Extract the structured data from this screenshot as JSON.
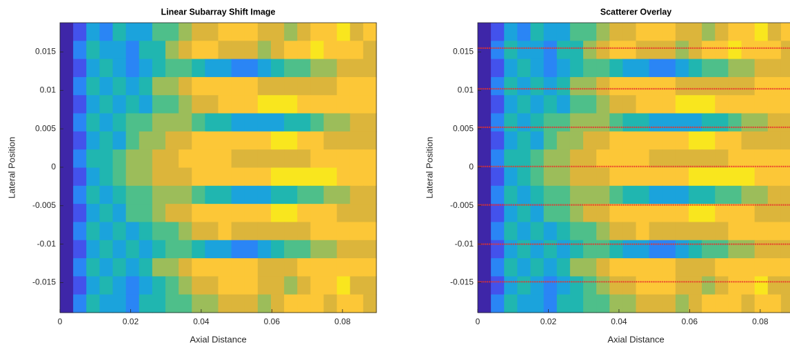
{
  "chart_data": [
    {
      "type": "heatmap",
      "title": "Linear Subarray Shift Image",
      "x_label": "Axial Distance",
      "y_label": "Lateral Position",
      "xlim": [
        0,
        0.0896
      ],
      "ylim": [
        -0.0189,
        0.0188
      ],
      "xticks": [
        0,
        0.02,
        0.04,
        0.06,
        0.08
      ],
      "yticks": [
        -0.015,
        -0.01,
        -0.005,
        0,
        0.005,
        0.01,
        0.015
      ],
      "clim": [
        0,
        9
      ],
      "colormap": [
        "#3e26a8",
        "#4352ec",
        "#2a85f5",
        "#1ba3dc",
        "#20b6b0",
        "#4ebf8a",
        "#9cbd5a",
        "#dcb53b",
        "#fcc737",
        "#f9e61e"
      ],
      "z": [
        [
          0,
          1,
          3,
          2,
          4,
          3,
          3,
          5,
          5,
          6,
          7,
          7,
          8,
          8,
          8,
          7,
          7,
          6,
          7,
          8,
          8,
          9,
          7,
          8
        ],
        [
          0,
          2,
          4,
          3,
          3,
          2,
          4,
          4,
          6,
          7,
          8,
          8,
          7,
          7,
          7,
          6,
          7,
          8,
          8,
          9,
          8,
          8,
          8,
          7
        ],
        [
          0,
          1,
          3,
          4,
          3,
          2,
          3,
          4,
          5,
          5,
          4,
          3,
          3,
          2,
          2,
          3,
          4,
          5,
          5,
          6,
          6,
          7,
          7,
          7
        ],
        [
          0,
          2,
          4,
          3,
          4,
          3,
          4,
          6,
          6,
          7,
          8,
          8,
          8,
          8,
          8,
          7,
          7,
          7,
          7,
          7,
          7,
          8,
          8,
          8
        ],
        [
          0,
          1,
          3,
          4,
          3,
          4,
          3,
          5,
          5,
          6,
          7,
          7,
          8,
          8,
          8,
          9,
          9,
          9,
          8,
          8,
          8,
          8,
          8,
          8
        ],
        [
          0,
          2,
          4,
          3,
          4,
          5,
          5,
          6,
          6,
          6,
          5,
          4,
          4,
          3,
          3,
          3,
          3,
          4,
          4,
          5,
          6,
          6,
          7,
          7
        ],
        [
          0,
          1,
          3,
          4,
          3,
          5,
          6,
          6,
          7,
          7,
          8,
          8,
          8,
          8,
          8,
          8,
          9,
          9,
          8,
          8,
          7,
          7,
          7,
          7
        ],
        [
          0,
          2,
          4,
          4,
          5,
          6,
          6,
          7,
          7,
          8,
          8,
          8,
          8,
          7,
          7,
          7,
          7,
          7,
          7,
          8,
          8,
          8,
          8,
          8
        ],
        [
          0,
          1,
          3,
          4,
          5,
          6,
          6,
          7,
          7,
          7,
          8,
          8,
          8,
          8,
          8,
          8,
          9,
          9,
          9,
          9,
          9,
          8,
          8,
          8
        ],
        [
          0,
          2,
          4,
          3,
          4,
          5,
          5,
          6,
          6,
          6,
          5,
          4,
          4,
          3,
          3,
          3,
          4,
          4,
          5,
          5,
          6,
          6,
          7,
          7
        ],
        [
          0,
          1,
          3,
          4,
          3,
          5,
          5,
          6,
          7,
          7,
          8,
          8,
          8,
          8,
          8,
          8,
          9,
          9,
          8,
          8,
          8,
          7,
          7,
          7
        ],
        [
          0,
          2,
          4,
          3,
          4,
          3,
          4,
          5,
          5,
          6,
          7,
          7,
          8,
          7,
          7,
          7,
          7,
          7,
          7,
          8,
          8,
          8,
          8,
          8
        ],
        [
          0,
          1,
          3,
          4,
          3,
          4,
          3,
          4,
          5,
          5,
          4,
          3,
          3,
          2,
          2,
          3,
          4,
          5,
          5,
          6,
          6,
          7,
          7,
          7
        ],
        [
          0,
          2,
          4,
          3,
          4,
          3,
          4,
          6,
          6,
          7,
          8,
          8,
          8,
          8,
          8,
          7,
          7,
          7,
          8,
          8,
          8,
          8,
          8,
          8
        ],
        [
          0,
          1,
          3,
          4,
          3,
          2,
          3,
          4,
          5,
          6,
          7,
          7,
          8,
          8,
          8,
          7,
          7,
          6,
          7,
          8,
          8,
          9,
          7,
          7
        ],
        [
          0,
          2,
          4,
          3,
          3,
          2,
          4,
          4,
          5,
          5,
          6,
          6,
          7,
          7,
          7,
          6,
          7,
          8,
          8,
          8,
          7,
          8,
          8,
          7
        ]
      ]
    },
    {
      "type": "heatmap",
      "title": "Scatterer Overlay",
      "x_label": "Axial Distance",
      "y_label": "Lateral Position",
      "xlim": [
        0,
        0.0896
      ],
      "ylim": [
        -0.0189,
        0.0188
      ],
      "xticks": [
        0,
        0.02,
        0.04,
        0.06,
        0.08
      ],
      "yticks": [
        -0.015,
        -0.01,
        -0.005,
        0,
        0.005,
        0.01,
        0.015
      ],
      "clim": [
        0,
        9
      ],
      "colormap": [
        "#3e26a8",
        "#4352ec",
        "#2a85f5",
        "#1ba3dc",
        "#20b6b0",
        "#4ebf8a",
        "#9cbd5a",
        "#dcb53b",
        "#fcc737",
        "#f9e61e"
      ],
      "z": [
        [
          0,
          1,
          3,
          2,
          4,
          3,
          3,
          5,
          5,
          6,
          7,
          7,
          8,
          8,
          8,
          7,
          7,
          6,
          7,
          8,
          8,
          9,
          7,
          8
        ],
        [
          0,
          2,
          4,
          3,
          3,
          2,
          4,
          4,
          6,
          7,
          8,
          8,
          7,
          7,
          7,
          6,
          7,
          8,
          8,
          9,
          8,
          8,
          8,
          7
        ],
        [
          0,
          1,
          3,
          4,
          3,
          2,
          3,
          4,
          5,
          5,
          4,
          3,
          3,
          2,
          2,
          3,
          4,
          5,
          5,
          6,
          6,
          7,
          7,
          7
        ],
        [
          0,
          2,
          4,
          3,
          4,
          3,
          4,
          6,
          6,
          7,
          8,
          8,
          8,
          8,
          8,
          7,
          7,
          7,
          7,
          7,
          7,
          8,
          8,
          8
        ],
        [
          0,
          1,
          3,
          4,
          3,
          4,
          3,
          5,
          5,
          6,
          7,
          7,
          8,
          8,
          8,
          9,
          9,
          9,
          8,
          8,
          8,
          8,
          8,
          8
        ],
        [
          0,
          2,
          4,
          3,
          4,
          5,
          5,
          6,
          6,
          6,
          5,
          4,
          4,
          3,
          3,
          3,
          3,
          4,
          4,
          5,
          6,
          6,
          7,
          7
        ],
        [
          0,
          1,
          3,
          4,
          3,
          5,
          6,
          6,
          7,
          7,
          8,
          8,
          8,
          8,
          8,
          8,
          9,
          9,
          8,
          8,
          7,
          7,
          7,
          7
        ],
        [
          0,
          2,
          4,
          4,
          5,
          6,
          6,
          7,
          7,
          8,
          8,
          8,
          8,
          7,
          7,
          7,
          7,
          7,
          7,
          8,
          8,
          8,
          8,
          8
        ],
        [
          0,
          1,
          3,
          4,
          5,
          6,
          6,
          7,
          7,
          7,
          8,
          8,
          8,
          8,
          8,
          8,
          9,
          9,
          9,
          9,
          9,
          8,
          8,
          8
        ],
        [
          0,
          2,
          4,
          3,
          4,
          5,
          5,
          6,
          6,
          6,
          5,
          4,
          4,
          3,
          3,
          3,
          4,
          4,
          5,
          5,
          6,
          6,
          7,
          7
        ],
        [
          0,
          1,
          3,
          4,
          3,
          5,
          5,
          6,
          7,
          7,
          8,
          8,
          8,
          8,
          8,
          8,
          9,
          9,
          8,
          8,
          8,
          7,
          7,
          7
        ],
        [
          0,
          2,
          4,
          3,
          4,
          3,
          4,
          5,
          5,
          6,
          7,
          7,
          8,
          7,
          7,
          7,
          7,
          7,
          7,
          8,
          8,
          8,
          8,
          8
        ],
        [
          0,
          1,
          3,
          4,
          3,
          4,
          3,
          4,
          5,
          5,
          4,
          3,
          3,
          2,
          2,
          3,
          4,
          5,
          5,
          6,
          6,
          7,
          7,
          7
        ],
        [
          0,
          2,
          4,
          3,
          4,
          3,
          4,
          6,
          6,
          7,
          8,
          8,
          8,
          8,
          8,
          7,
          7,
          7,
          8,
          8,
          8,
          8,
          8,
          8
        ],
        [
          0,
          1,
          3,
          4,
          3,
          2,
          3,
          4,
          5,
          6,
          7,
          7,
          8,
          8,
          8,
          7,
          7,
          6,
          7,
          8,
          8,
          9,
          7,
          7
        ],
        [
          0,
          2,
          4,
          3,
          3,
          2,
          4,
          4,
          5,
          5,
          6,
          6,
          7,
          7,
          7,
          6,
          7,
          8,
          8,
          8,
          7,
          8,
          8,
          7
        ]
      ],
      "overlay": {
        "type": "scatter",
        "color": "#e8322a",
        "y": [
          0.0155,
          0.0102,
          0.0052,
          0.0001,
          -0.0049,
          -0.01,
          -0.0149
        ]
      }
    }
  ]
}
